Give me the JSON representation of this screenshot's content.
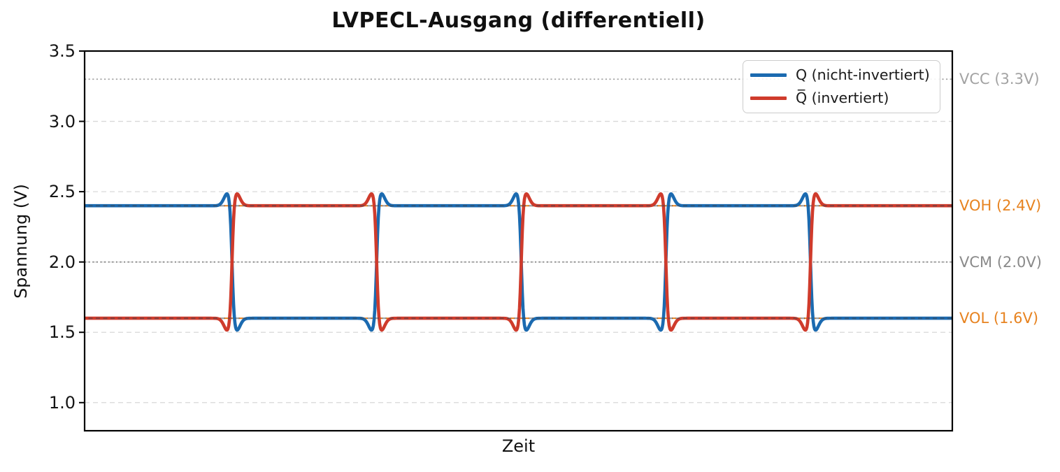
{
  "chart_data": {
    "type": "line",
    "title": "LVPECL-Ausgang (differentiell)",
    "xlabel": "Zeit",
    "ylabel": "Spannung (V)",
    "ylim": [
      0.8,
      3.5
    ],
    "xticks": [],
    "yticks": [
      {
        "label": "3.5",
        "value": 3.5
      },
      {
        "label": "3.0",
        "value": 3.0
      },
      {
        "label": "2.5",
        "value": 2.5
      },
      {
        "label": "2.0",
        "value": 2.0
      },
      {
        "label": "1.5",
        "value": 1.5
      },
      {
        "label": "1.0",
        "value": 1.0
      }
    ],
    "grid": {
      "horizontal": true,
      "style": "dashed",
      "color": "#d8d8d8"
    },
    "legend_position": "upper right",
    "series": [
      {
        "name": "Q (nicht-invertiert)",
        "color": "#1b6ab0",
        "waveform": "square",
        "start_level": "high",
        "high_v": 2.4,
        "low_v": 1.6,
        "overshoot_v": 2.47,
        "undershoot_v": 1.53,
        "half_periods_visible": 6,
        "transitions_at_half_periods": [
          1,
          2,
          3,
          4,
          5
        ]
      },
      {
        "name": "Q̅ (invertiert)",
        "color": "#cf3b2c",
        "waveform": "square",
        "start_level": "low",
        "high_v": 2.4,
        "low_v": 1.6,
        "overshoot_v": 2.47,
        "undershoot_v": 1.53,
        "half_periods_visible": 6,
        "transitions_at_half_periods": [
          1,
          2,
          3,
          4,
          5
        ]
      }
    ],
    "reference_lines": [
      {
        "label": "VCC (3.3V)",
        "value": 3.3,
        "style": "dotted",
        "color": "#a3a3a3",
        "label_color": "#a3a3a3"
      },
      {
        "label": "VOH (2.4V)",
        "value": 2.4,
        "style": "dashed",
        "color": "#e78320",
        "label_color": "#e78320"
      },
      {
        "label": "VCM (2.0V)",
        "value": 2.0,
        "style": "dotted",
        "color": "#8a8a8a",
        "label_color": "#8a8a8a"
      },
      {
        "label": "VOL (1.6V)",
        "value": 1.6,
        "style": "dashed",
        "color": "#e78320",
        "label_color": "#e78320"
      }
    ]
  }
}
